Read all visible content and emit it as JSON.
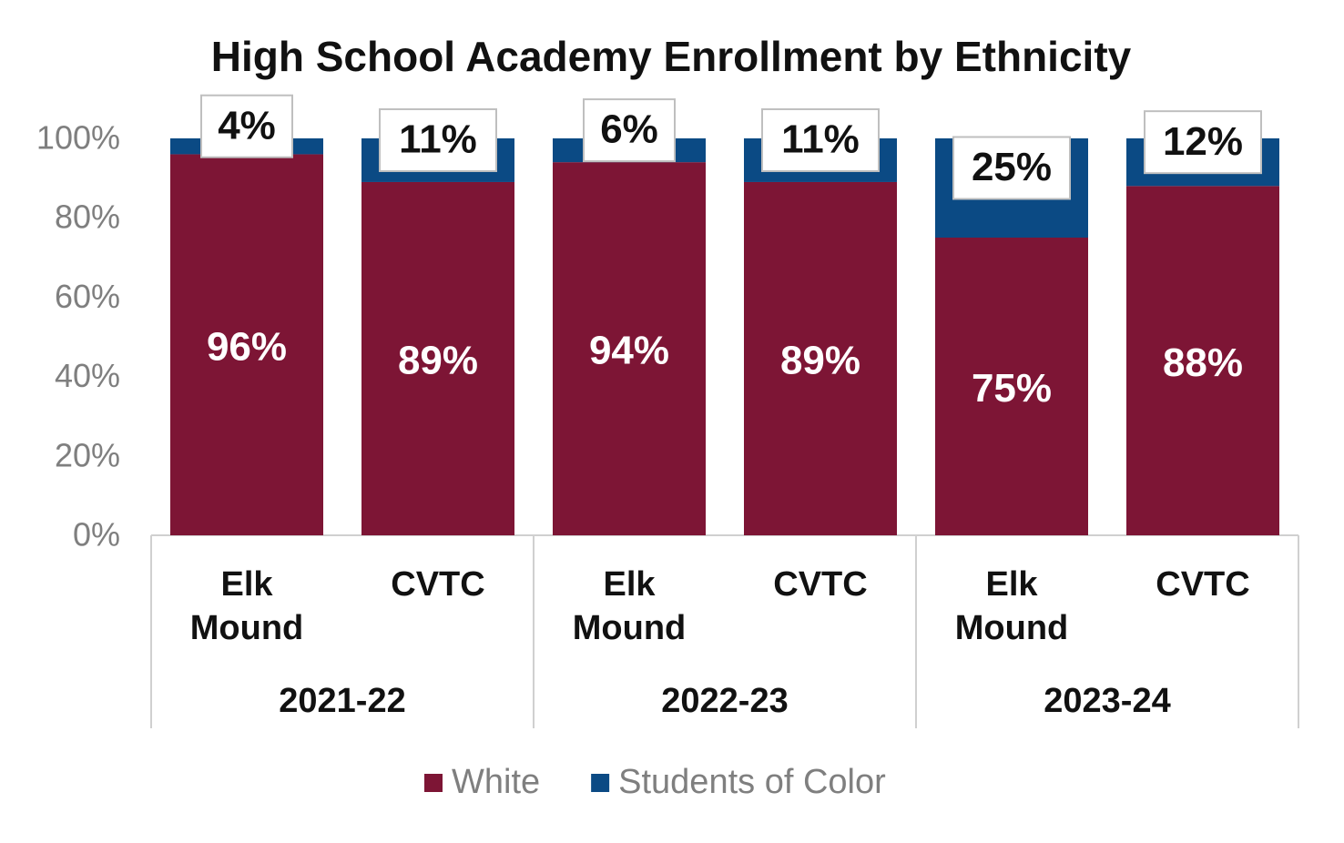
{
  "chart_data": {
    "type": "stacked_bar",
    "title": "High School Academy Enrollment by Ethnicity",
    "categories": [
      "Elk Mound",
      "CVTC",
      "Elk Mound",
      "CVTC",
      "Elk Mound",
      "CVTC"
    ],
    "groups": [
      "2021-22",
      "2022-23",
      "2023-24"
    ],
    "series": [
      {
        "name": "White",
        "color": "#7d1535",
        "values": [
          96,
          89,
          94,
          89,
          75,
          88
        ],
        "value_labels": [
          "96%",
          "89%",
          "94%",
          "89%",
          "75%",
          "88%"
        ]
      },
      {
        "name": "Students of Color",
        "color": "#0b4a84",
        "values": [
          4,
          11,
          6,
          11,
          25,
          12
        ],
        "value_labels": [
          "4%",
          "11%",
          "6%",
          "11%",
          "25%",
          "12%"
        ]
      }
    ],
    "ylim": [
      0,
      100
    ],
    "yticks": [
      {
        "value": 0,
        "label": "0%"
      },
      {
        "value": 20,
        "label": "20%"
      },
      {
        "value": 40,
        "label": "40%"
      },
      {
        "value": 60,
        "label": "60%"
      },
      {
        "value": 80,
        "label": "80%"
      },
      {
        "value": 100,
        "label": "100%"
      }
    ],
    "grid": false,
    "legend": "bottom"
  }
}
